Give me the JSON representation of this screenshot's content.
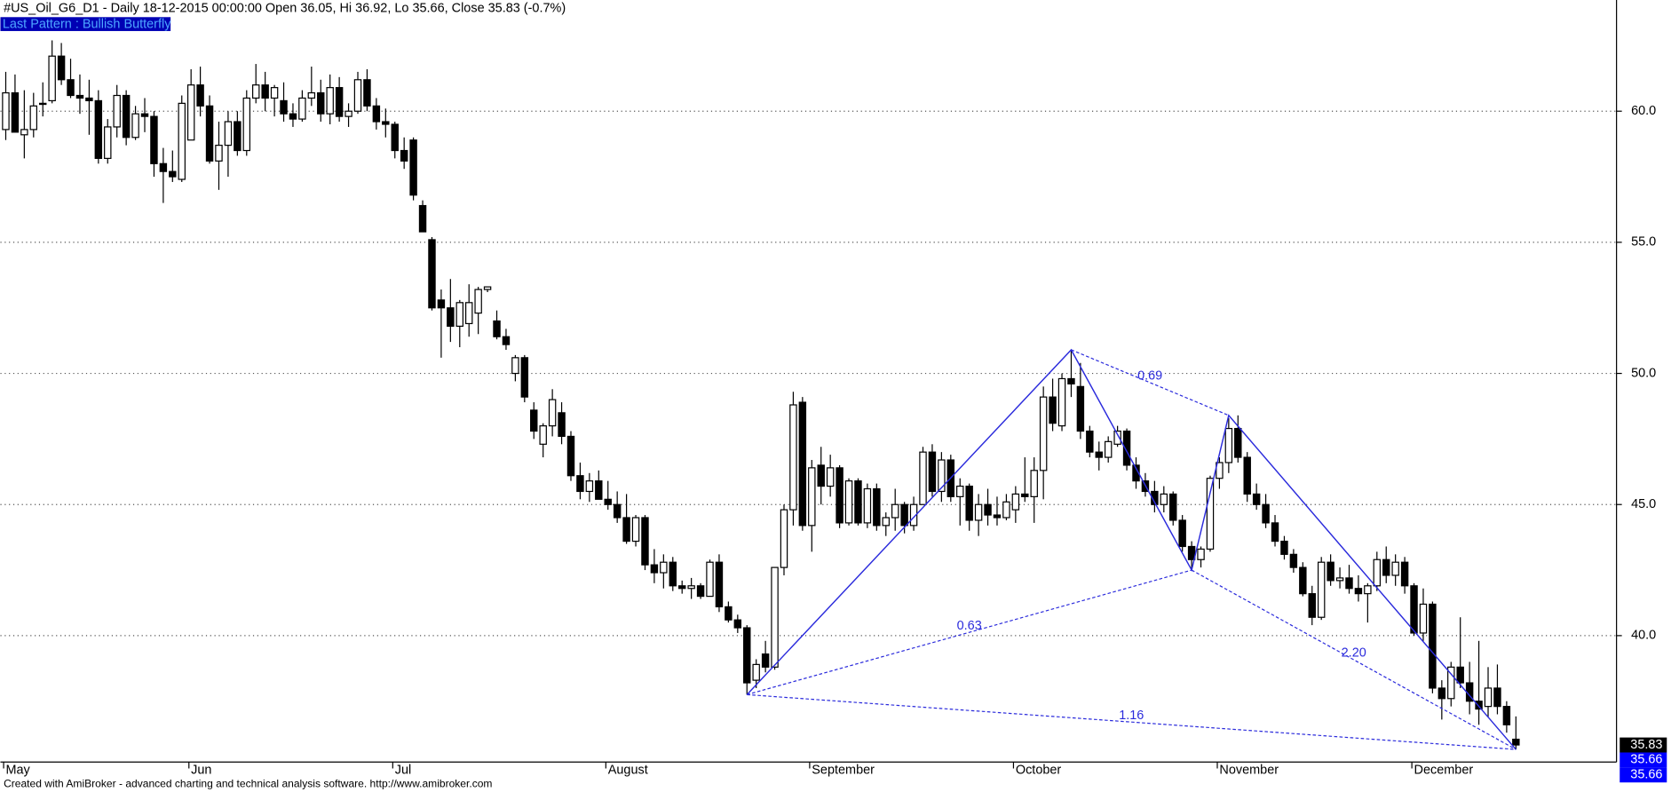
{
  "chart_data": {
    "type": "candlestick",
    "title": "#US_Oil_G6_D1 - Daily 18-12-2015 00:00:00 Open 36.05, Hi 36.92, Lo 35.66, Close 35.83 (-0.7%)",
    "pattern_label": "Last Pattern : Bullish Butterfly",
    "footer": "Created with AmiBroker - advanced charting and technical analysis software. http://www.amibroker.com",
    "categories": [
      "May",
      null,
      null,
      null,
      null,
      null,
      null,
      null,
      null,
      null,
      null,
      null,
      null,
      null,
      null,
      null,
      null,
      null,
      null,
      null,
      "Jun",
      null,
      null,
      null,
      null,
      null,
      null,
      null,
      null,
      null,
      null,
      null,
      null,
      null,
      null,
      null,
      null,
      null,
      null,
      null,
      null,
      null,
      "Jul",
      null,
      null,
      null,
      null,
      null,
      null,
      null,
      null,
      null,
      null,
      null,
      null,
      null,
      null,
      null,
      null,
      null,
      null,
      null,
      null,
      null,
      null,
      "August",
      null,
      null,
      null,
      null,
      null,
      null,
      null,
      null,
      null,
      null,
      null,
      null,
      null,
      null,
      null,
      null,
      null,
      null,
      null,
      null,
      null,
      "September",
      null,
      null,
      null,
      null,
      null,
      null,
      null,
      null,
      null,
      null,
      null,
      null,
      null,
      null,
      null,
      null,
      null,
      null,
      null,
      null,
      null,
      "October",
      null,
      null,
      null,
      null,
      null,
      null,
      null,
      null,
      null,
      null,
      null,
      null,
      null,
      null,
      null,
      null,
      null,
      null,
      null,
      null,
      null,
      "November",
      null,
      null,
      null,
      null,
      null,
      null,
      null,
      null,
      null,
      null,
      null,
      null,
      null,
      null,
      null,
      null,
      null,
      null,
      null,
      null,
      "December",
      null,
      null,
      null,
      null,
      null,
      null,
      null,
      null,
      null,
      null,
      null
    ],
    "ohlc": [
      [
        59.3,
        61.5,
        58.9,
        60.7
      ],
      [
        60.7,
        61.4,
        59.2,
        59.2
      ],
      [
        59.1,
        60.8,
        58.2,
        59.3
      ],
      [
        59.3,
        60.7,
        59.0,
        60.2
      ],
      [
        60.3,
        61.1,
        59.8,
        60.3
      ],
      [
        60.4,
        62.7,
        60.3,
        62.1
      ],
      [
        62.1,
        62.6,
        61.0,
        61.2
      ],
      [
        61.2,
        62.0,
        60.5,
        60.6
      ],
      [
        60.6,
        61.4,
        59.9,
        60.5
      ],
      [
        60.5,
        61.2,
        59.1,
        60.4
      ],
      [
        60.4,
        60.8,
        58.0,
        58.2
      ],
      [
        58.2,
        59.7,
        58.0,
        59.4
      ],
      [
        59.4,
        61.0,
        59.0,
        60.6
      ],
      [
        60.6,
        60.8,
        58.7,
        59.0
      ],
      [
        59.0,
        60.2,
        58.9,
        59.9
      ],
      [
        59.9,
        60.5,
        59.2,
        59.8
      ],
      [
        59.8,
        60.0,
        57.5,
        58.0
      ],
      [
        58.0,
        58.6,
        56.5,
        57.7
      ],
      [
        57.7,
        58.5,
        57.3,
        57.5
      ],
      [
        57.4,
        60.6,
        57.3,
        60.3
      ],
      [
        58.9,
        61.6,
        58.9,
        61.0
      ],
      [
        61.0,
        61.7,
        59.8,
        60.2
      ],
      [
        60.2,
        60.6,
        58.0,
        58.1
      ],
      [
        58.1,
        59.6,
        57.0,
        58.7
      ],
      [
        58.7,
        60.0,
        57.5,
        59.6
      ],
      [
        59.6,
        60.0,
        58.3,
        58.5
      ],
      [
        58.5,
        60.8,
        58.3,
        60.5
      ],
      [
        60.5,
        61.8,
        60.3,
        61.0
      ],
      [
        61.0,
        61.5,
        60.0,
        60.5
      ],
      [
        60.5,
        61.0,
        59.8,
        60.9
      ],
      [
        60.4,
        61.1,
        59.6,
        59.9
      ],
      [
        59.9,
        60.3,
        59.4,
        59.7
      ],
      [
        59.7,
        60.8,
        59.6,
        60.5
      ],
      [
        60.5,
        61.7,
        60.2,
        60.7
      ],
      [
        60.7,
        61.2,
        59.6,
        59.9
      ],
      [
        59.9,
        61.4,
        59.5,
        60.9
      ],
      [
        60.9,
        61.3,
        59.6,
        59.8
      ],
      [
        59.8,
        60.3,
        59.4,
        60.0
      ],
      [
        60.0,
        61.5,
        59.9,
        61.2
      ],
      [
        61.2,
        61.6,
        60.0,
        60.2
      ],
      [
        60.2,
        60.5,
        59.3,
        59.6
      ],
      [
        59.6,
        60.1,
        59.0,
        59.5
      ],
      [
        59.5,
        59.6,
        58.2,
        58.5
      ],
      [
        58.5,
        59.0,
        57.8,
        58.1
      ],
      [
        58.9,
        59.0,
        56.6,
        56.8
      ],
      [
        56.4,
        56.6,
        55.4,
        55.4
      ],
      [
        55.1,
        55.2,
        52.4,
        52.5
      ],
      [
        52.8,
        53.2,
        50.6,
        52.5
      ],
      [
        52.5,
        53.6,
        51.2,
        51.8
      ],
      [
        51.8,
        52.8,
        51.0,
        52.7
      ],
      [
        51.9,
        53.4,
        51.4,
        52.7
      ],
      [
        52.3,
        53.3,
        51.5,
        53.2
      ],
      [
        53.2,
        53.3,
        53.1,
        53.3
      ],
      [
        52.0,
        52.4,
        51.3,
        51.4
      ],
      [
        51.4,
        51.7,
        50.9,
        51.1
      ],
      [
        50.0,
        50.7,
        49.7,
        50.6
      ],
      [
        50.6,
        50.7,
        48.9,
        49.1
      ],
      [
        48.6,
        48.9,
        47.5,
        47.8
      ],
      [
        47.3,
        48.1,
        46.8,
        48.0
      ],
      [
        48.0,
        49.4,
        47.6,
        49.0
      ],
      [
        48.5,
        48.9,
        47.3,
        47.6
      ],
      [
        47.6,
        47.8,
        45.9,
        46.1
      ],
      [
        46.1,
        46.6,
        45.2,
        45.5
      ],
      [
        45.5,
        46.2,
        45.1,
        45.9
      ],
      [
        45.9,
        46.3,
        45.2,
        45.2
      ],
      [
        45.2,
        45.9,
        44.8,
        45.0
      ],
      [
        45.0,
        45.5,
        44.3,
        44.5
      ],
      [
        44.5,
        45.4,
        43.5,
        43.6
      ],
      [
        43.6,
        44.6,
        43.4,
        44.5
      ],
      [
        44.5,
        44.6,
        42.5,
        42.7
      ],
      [
        42.7,
        43.3,
        42.0,
        42.4
      ],
      [
        42.4,
        43.1,
        41.8,
        42.8
      ],
      [
        42.8,
        43.0,
        41.7,
        41.9
      ],
      [
        41.9,
        42.1,
        41.6,
        41.8
      ],
      [
        41.8,
        42.2,
        41.4,
        41.9
      ],
      [
        41.9,
        42.0,
        41.4,
        41.5
      ],
      [
        41.5,
        42.9,
        41.5,
        42.8
      ],
      [
        42.8,
        43.1,
        40.9,
        41.1
      ],
      [
        41.1,
        41.3,
        40.5,
        40.6
      ],
      [
        40.6,
        40.8,
        40.1,
        40.3
      ],
      [
        40.3,
        40.4,
        37.75,
        38.2
      ],
      [
        38.3,
        39.1,
        38.0,
        38.9
      ],
      [
        39.3,
        39.8,
        38.6,
        38.8
      ],
      [
        38.8,
        42.6,
        38.7,
        42.6
      ],
      [
        42.6,
        45.0,
        42.3,
        44.8
      ],
      [
        44.8,
        49.3,
        44.2,
        48.8
      ],
      [
        48.9,
        49.1,
        44.0,
        44.2
      ],
      [
        44.2,
        46.7,
        43.2,
        46.4
      ],
      [
        46.5,
        47.2,
        45.0,
        45.7
      ],
      [
        45.7,
        46.9,
        45.3,
        46.4
      ],
      [
        46.4,
        46.5,
        44.1,
        44.3
      ],
      [
        44.3,
        46.0,
        44.2,
        45.9
      ],
      [
        45.9,
        46.0,
        44.2,
        44.3
      ],
      [
        44.3,
        45.8,
        44.1,
        45.6
      ],
      [
        45.6,
        45.8,
        44.0,
        44.2
      ],
      [
        44.2,
        44.7,
        43.8,
        44.5
      ],
      [
        44.5,
        45.6,
        44.0,
        45.0
      ],
      [
        45.0,
        45.1,
        43.9,
        44.2
      ],
      [
        44.2,
        45.3,
        44.0,
        45.0
      ],
      [
        45.0,
        47.2,
        45.0,
        47.0
      ],
      [
        47.0,
        47.3,
        45.3,
        45.5
      ],
      [
        45.5,
        47.0,
        45.1,
        46.7
      ],
      [
        46.7,
        46.9,
        45.1,
        45.3
      ],
      [
        45.3,
        46.0,
        44.2,
        45.7
      ],
      [
        45.7,
        45.8,
        44.0,
        44.4
      ],
      [
        44.4,
        45.4,
        43.8,
        45.0
      ],
      [
        45.0,
        45.6,
        44.2,
        44.6
      ],
      [
        44.6,
        45.3,
        44.2,
        44.5
      ],
      [
        44.5,
        45.4,
        44.4,
        45.1
      ],
      [
        44.8,
        45.7,
        44.3,
        45.4
      ],
      [
        45.4,
        46.8,
        45.1,
        45.3
      ],
      [
        45.3,
        46.8,
        44.3,
        46.3
      ],
      [
        46.3,
        49.5,
        45.2,
        49.1
      ],
      [
        49.1,
        49.8,
        47.8,
        48.1
      ],
      [
        48.0,
        50.0,
        47.8,
        49.8
      ],
      [
        49.8,
        50.9,
        49.1,
        49.6
      ],
      [
        49.5,
        50.4,
        47.5,
        47.8
      ],
      [
        47.8,
        48.0,
        46.8,
        47.0
      ],
      [
        47.0,
        47.4,
        46.3,
        46.8
      ],
      [
        46.8,
        47.6,
        46.6,
        47.4
      ],
      [
        47.3,
        48.0,
        47.2,
        47.8
      ],
      [
        47.8,
        47.9,
        46.3,
        46.5
      ],
      [
        46.5,
        46.8,
        45.6,
        45.9
      ],
      [
        45.9,
        46.2,
        45.3,
        45.5
      ],
      [
        45.5,
        45.9,
        44.7,
        45.0
      ],
      [
        45.0,
        45.7,
        44.7,
        45.4
      ],
      [
        45.4,
        45.5,
        44.2,
        44.4
      ],
      [
        44.4,
        44.6,
        43.2,
        43.4
      ],
      [
        43.4,
        43.6,
        42.5,
        42.9
      ],
      [
        42.9,
        43.4,
        42.6,
        43.3
      ],
      [
        43.3,
        46.1,
        43.2,
        46.0
      ],
      [
        46.0,
        46.8,
        45.6,
        46.6
      ],
      [
        46.6,
        48.3,
        46.2,
        47.9
      ],
      [
        47.9,
        48.4,
        46.6,
        46.8
      ],
      [
        46.8,
        47.0,
        45.1,
        45.4
      ],
      [
        45.4,
        45.8,
        44.8,
        45.0
      ],
      [
        45.0,
        45.4,
        44.1,
        44.3
      ],
      [
        44.3,
        44.6,
        43.4,
        43.6
      ],
      [
        43.6,
        43.8,
        42.9,
        43.1
      ],
      [
        43.1,
        43.3,
        42.4,
        42.6
      ],
      [
        42.6,
        42.8,
        41.5,
        41.6
      ],
      [
        41.6,
        41.9,
        40.4,
        40.7
      ],
      [
        40.7,
        43.0,
        40.6,
        42.8
      ],
      [
        42.8,
        43.1,
        41.9,
        42.1
      ],
      [
        42.1,
        42.6,
        41.8,
        42.2
      ],
      [
        42.2,
        42.7,
        41.6,
        41.8
      ],
      [
        41.8,
        42.3,
        41.3,
        41.6
      ],
      [
        41.6,
        42.0,
        40.5,
        41.9
      ],
      [
        41.9,
        43.2,
        41.7,
        42.9
      ],
      [
        42.9,
        43.4,
        42.0,
        42.3
      ],
      [
        42.3,
        43.1,
        41.9,
        42.8
      ],
      [
        42.8,
        43.0,
        41.6,
        41.9
      ],
      [
        41.9,
        42.0,
        40.0,
        40.1
      ],
      [
        40.1,
        41.8,
        39.8,
        41.2
      ],
      [
        41.2,
        41.3,
        37.8,
        38.0
      ],
      [
        38.0,
        38.3,
        36.8,
        37.6
      ],
      [
        37.6,
        39.0,
        37.3,
        38.8
      ],
      [
        38.8,
        40.7,
        38.0,
        38.2
      ],
      [
        38.2,
        39.0,
        37.0,
        37.5
      ],
      [
        37.5,
        39.8,
        36.6,
        37.2
      ],
      [
        37.3,
        38.8,
        36.9,
        38.0
      ],
      [
        38.0,
        38.9,
        37.0,
        37.3
      ],
      [
        37.3,
        37.5,
        36.3,
        36.6
      ],
      [
        36.05,
        36.92,
        35.66,
        35.83
      ]
    ],
    "up_color": "#ffffff",
    "down_color": "#000000",
    "ylim": [
      35.18,
      64.24
    ],
    "yticks": [
      {
        "value": 40,
        "label": "40.0"
      },
      {
        "value": 45,
        "label": "45.0"
      },
      {
        "value": 50,
        "label": "50.0"
      },
      {
        "value": 55,
        "label": "55.0"
      },
      {
        "value": 60,
        "label": "60.0"
      }
    ],
    "grid": true,
    "pattern": {
      "color": "#2b2bdc",
      "points": [
        {
          "x": 80,
          "y": 37.75
        },
        {
          "x": 115,
          "y": 50.9
        },
        {
          "x": 128,
          "y": 42.5
        },
        {
          "x": 132,
          "y": 48.4
        },
        {
          "x": 163,
          "y": 35.66
        }
      ],
      "ratios": [
        {
          "from": 0,
          "to": 2,
          "label": "0.63"
        },
        {
          "from": 1,
          "to": 3,
          "label": "0.69"
        },
        {
          "from": 2,
          "to": 4,
          "label": "2.20"
        },
        {
          "from": 0,
          "to": 4,
          "label": "1.16"
        }
      ]
    },
    "price_labels": [
      {
        "value": 35.83,
        "label": "35.83",
        "color": "#000000"
      },
      {
        "value": 35.66,
        "label": "35.66",
        "color": "#0000ff"
      },
      {
        "value": 35.66,
        "label": "35.66",
        "color": "#0000ff"
      }
    ]
  }
}
